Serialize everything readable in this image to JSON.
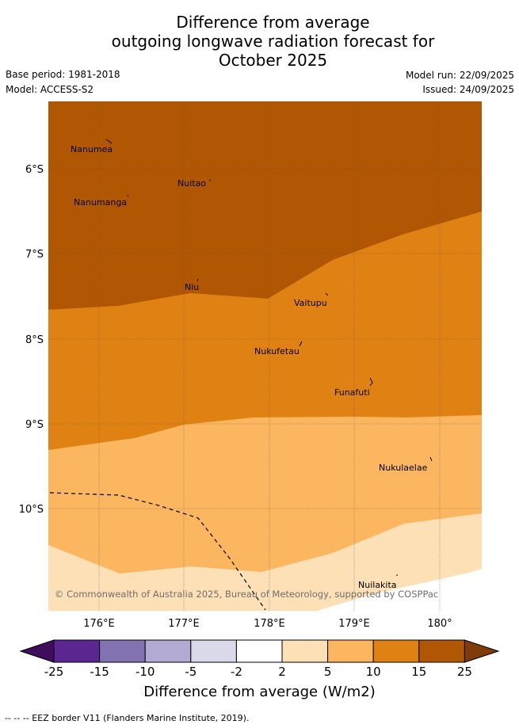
{
  "title": {
    "line1": "Difference from average",
    "line2": "outgoing longwave radiation forecast for",
    "line3": "October 2025"
  },
  "meta": {
    "base_period": "Base period: 1981-2018",
    "model": "Model: ACCESS-S2",
    "model_run": "Model run: 22/09/2025",
    "issued": "Issued: 24/09/2025"
  },
  "map": {
    "lat_labels": [
      "6°S",
      "7°S",
      "8°S",
      "9°S",
      "10°S"
    ],
    "lon_labels": [
      "176°E",
      "177°E",
      "178°E",
      "179°E",
      "180°"
    ],
    "places": [
      "Nanumea",
      "Nuitao",
      "Nanumanga",
      "Niu",
      "Vaitupu",
      "Nukufetau",
      "Funafuti",
      "Nukulaelae",
      "Nuilakita"
    ],
    "copyright": "© Commonwealth of Australia 2025, Bureau of Meteorology, supported by COSPPac",
    "colors": {
      "band_25": "#b15704",
      "band_15": "#e08213",
      "band_10": "#fbb65f",
      "band_5": "#fde0b6"
    }
  },
  "legend": {
    "ticks": [
      "-25",
      "-15",
      "-10",
      "-5",
      "-2",
      "2",
      "5",
      "10",
      "15",
      "25"
    ],
    "colors": [
      "#3f0c5e",
      "#5b2690",
      "#8272b1",
      "#b2aad2",
      "#d9d9ea",
      "#ffffff",
      "#fde0b6",
      "#fbb65f",
      "#e08213",
      "#b15704",
      "#7f3b08"
    ],
    "title": "Difference from average (W/m2)"
  },
  "footer": "--  --  -- EEZ border V11 (Flanders Marine Institute, 2019)."
}
